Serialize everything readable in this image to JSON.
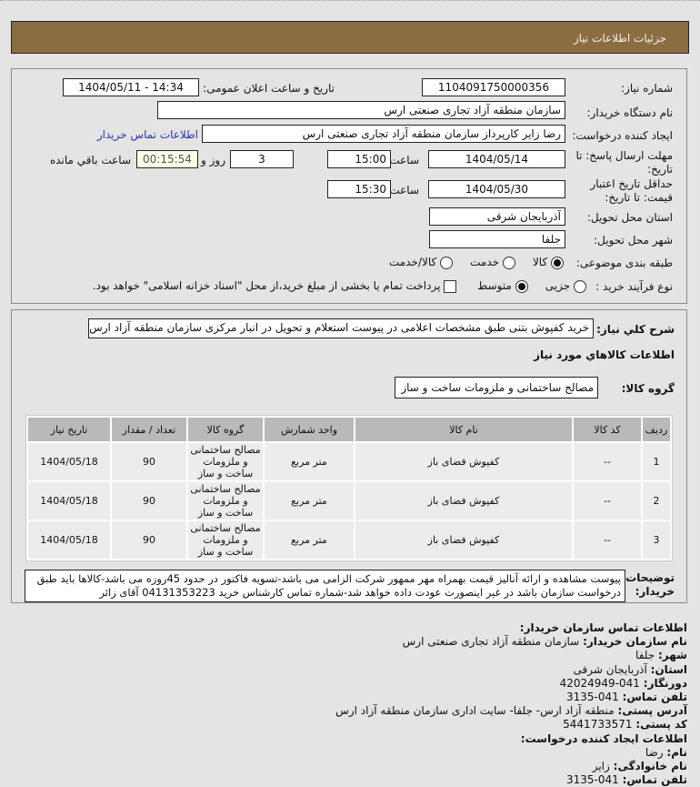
{
  "header": {
    "title": "جزئیات اطلاعات نیاز"
  },
  "form": {
    "need_number_label": "شماره نیاز:",
    "need_number": "1104091750000356",
    "announce_label": "تاریخ و ساعت اعلان عمومی:",
    "announce_value": "1404/05/11 - 14:34",
    "buyer_label": "نام دستگاه خریدار:",
    "buyer_value": "سازمان منطقه آزاد تجاری صنعتی ارس",
    "creator_label": "ایجاد کننده درخواست:",
    "creator_value": "رضا زایر کارپرداز سازمان منطقه آزاد تجاری صنعتی ارس",
    "buyer_contact_link": "اطلاعات تماس خریدار",
    "deadline_label": "مهلت ارسال پاسخ: تا تاریخ:",
    "deadline_date": "1404/05/14",
    "time_label": "ساعت",
    "deadline_time": "15:00",
    "days_value": "3",
    "days_label": "روز و",
    "remaining_time": "00:15:54",
    "remaining_label": "ساعت باقي مانده",
    "validity_label": "حداقل تاریخ اعتبار قیمت: تا تاریخ:",
    "validity_date": "1404/05/30",
    "validity_time": "15:30",
    "province_label": "استان محل تحویل:",
    "province_value": "آذربایجان شرقی",
    "city_label": "شهر محل تحویل:",
    "city_value": "جلفا",
    "category_label": "طبقه بندی موضوعی:",
    "category_options": [
      "کالا",
      "خدمت",
      "کالا/خدمت"
    ],
    "category_selected": "کالا",
    "process_label": "نوع فرآیند خرید :",
    "process_options": [
      "جزیی",
      "متوسط"
    ],
    "process_selected": "متوسط",
    "payment_note": "پرداخت تمام یا بخشی از مبلغ خرید،از محل \"اسناد خزانه اسلامی\" خواهد بود."
  },
  "details": {
    "summary_label": "شرح کلي نياز:",
    "summary_value": "خرید کفپوش بتنی طبق مشخصات اعلامی در پیوست استعلام و تحویل در انبار مرکزی سازمان منطقه آزاد ارس",
    "goods_title": "اطلاعات کالاهاي مورد نياز",
    "group_label": "گروه کالا:",
    "group_value": "مصالح ساختمانی و ملزومات ساخت و ساز",
    "table": {
      "headers": [
        "ردیف",
        "کد کالا",
        "نام کالا",
        "واحد شمارش",
        "گروه کالا",
        "تعداد / مقدار",
        "تاریخ نیاز"
      ],
      "rows": [
        [
          "1",
          "--",
          "کفپوش فضای باز",
          "متر مربع",
          "مصالح ساختمانی و ملزومات ساخت و ساز",
          "90",
          "1404/05/18"
        ],
        [
          "2",
          "--",
          "کفپوش فضای باز",
          "متر مربع",
          "مصالح ساختمانی و ملزومات ساخت و ساز",
          "90",
          "1404/05/18"
        ],
        [
          "3",
          "--",
          "کفپوش فضای باز",
          "متر مربع",
          "مصالح ساختمانی و ملزومات ساخت و ساز",
          "90",
          "1404/05/18"
        ]
      ]
    },
    "notes_label": "توضیحات خریدار:",
    "notes_value": "پیوست مشاهده و ارائه آنالیز قیمت بهمراه مهر ممهور شرکت الزامی می باشد-تسویه فاکتور در حدود 45روزه می باشد-کالاها باید طبق درخواست سازمان باشد در غیر اینصورت عودت داده خواهد شد-شماره تماس کارشناس خرید 04131353223 آقای زائر"
  },
  "contact": {
    "title": "اطلاعات تماس سازمان خریدار:",
    "org_label": "نام سازمان خریدار:",
    "org_value": "سازمان منطقه آزاد تجاری صنعتی ارس",
    "city_label": "شهر:",
    "city_value": "جلفا",
    "province_label": "استان:",
    "province_value": "آذربایجان شرقی",
    "fax_label": "دورنگار:",
    "fax_value": "041-42024949",
    "phone_label": "تلفن تماس:",
    "phone_value": "041-3135",
    "address_label": "آدرس پستی:",
    "address_value": "منطقه آزاد ارس- جلفا- سایت اداری سازمان منطقه آزاد ارس",
    "postal_label": "کد پستی:",
    "postal_value": "5441733571",
    "creator_title": "اطلاعات ایجاد کننده درخواست:",
    "name_label": "نام:",
    "name_value": "رضا",
    "family_label": "نام خانوادگی:",
    "family_value": "زایر",
    "creator_phone_label": "تلفن تماس:",
    "creator_phone_value": "041-3135"
  }
}
